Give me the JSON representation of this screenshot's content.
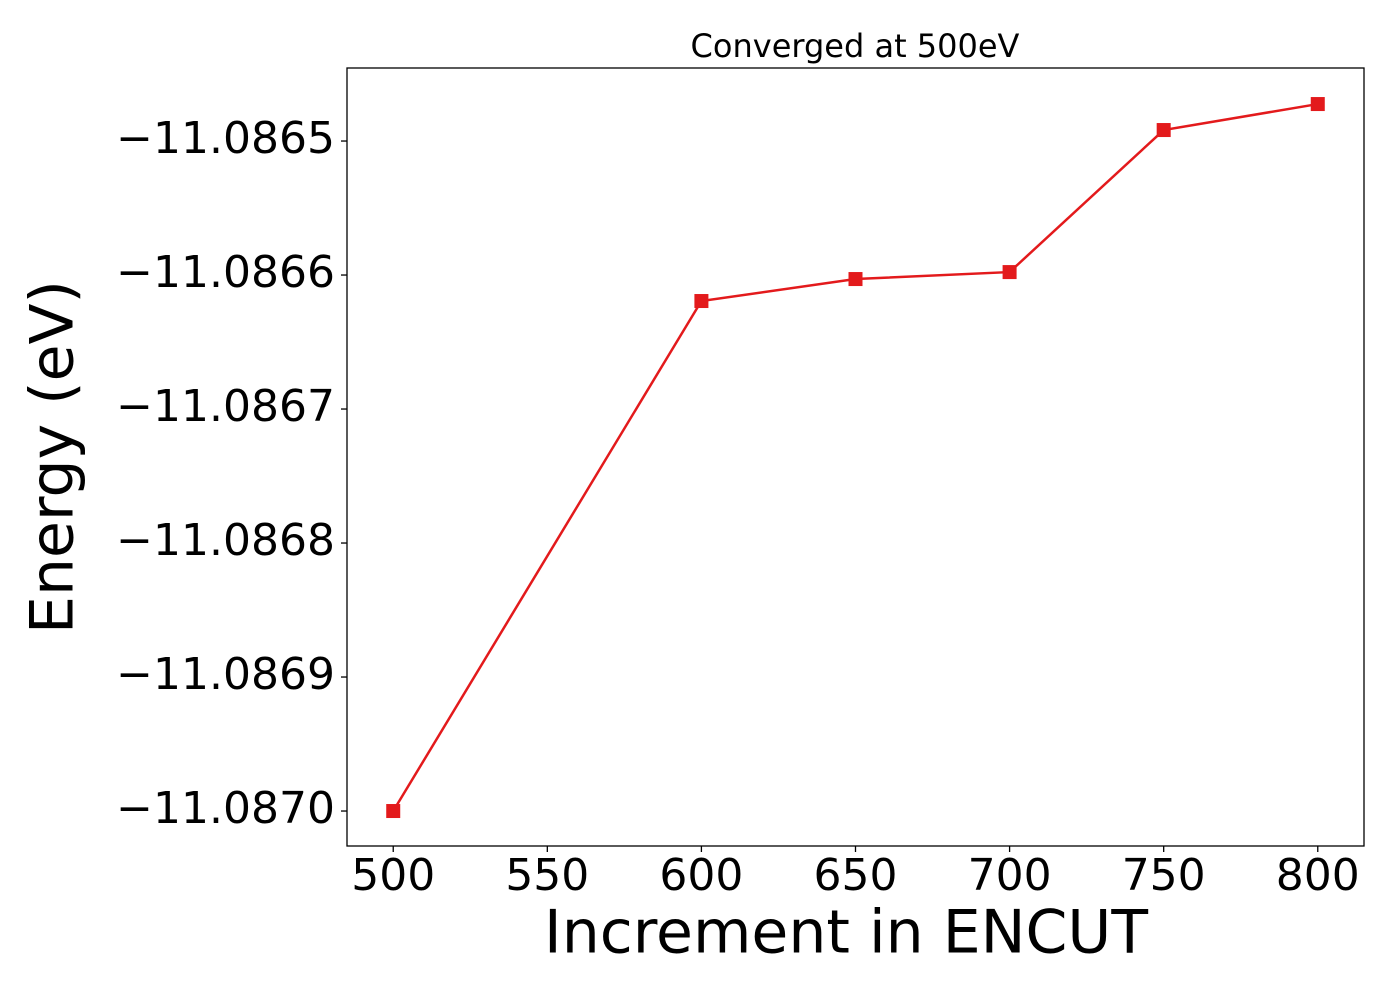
{
  "chart_data": {
    "type": "line",
    "title": "Converged at 500eV",
    "x_label": "Increment in ENCUT",
    "y_label": "Energy (eV)",
    "x": [
      500,
      600,
      650,
      700,
      750,
      800
    ],
    "series": [
      {
        "name": "Energy",
        "color": "#e31a1c",
        "values": [
          -11.087,
          -11.0866194,
          -11.086603,
          -11.0865978,
          -11.0864918,
          -11.0864724
        ]
      }
    ],
    "xlim": [
      485,
      815
    ],
    "ylim": [
      -11.0870261,
      -11.0864455
    ],
    "xticks": [
      500,
      550,
      600,
      650,
      700,
      750,
      800
    ],
    "yticks": [
      {
        "value": -11.0865,
        "label": "−11.0865"
      },
      {
        "value": -11.0866,
        "label": "−11.0866"
      },
      {
        "value": -11.0867,
        "label": "−11.0867"
      },
      {
        "value": -11.0868,
        "label": "−11.0868"
      },
      {
        "value": -11.0869,
        "label": "−11.0869"
      },
      {
        "value": -11.087,
        "label": "−11.0870"
      }
    ],
    "grid": false
  }
}
